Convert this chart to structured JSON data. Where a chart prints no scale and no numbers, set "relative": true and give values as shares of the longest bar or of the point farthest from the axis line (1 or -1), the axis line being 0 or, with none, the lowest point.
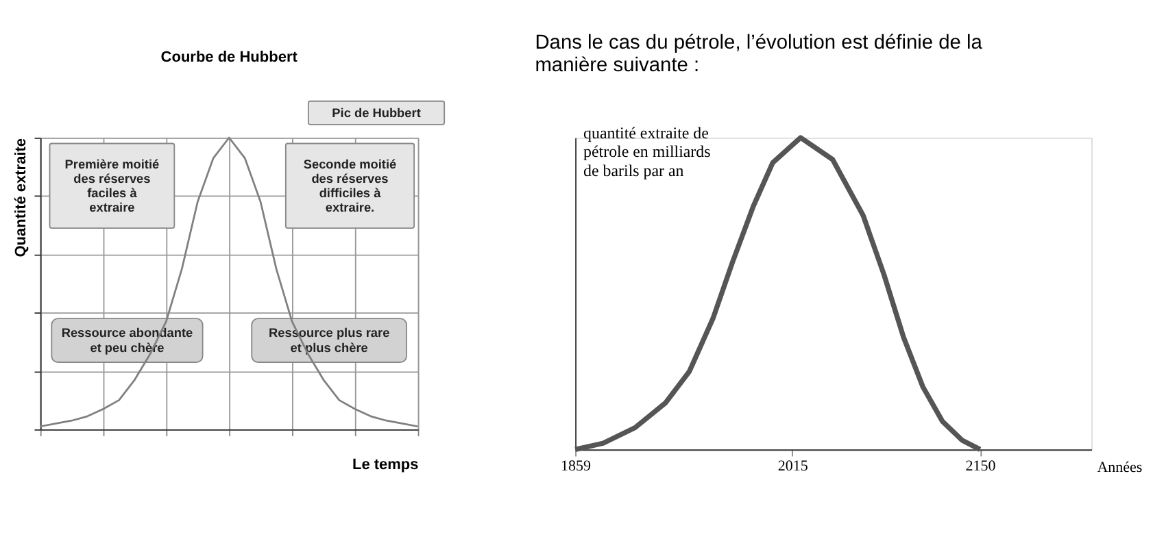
{
  "chart_data": [
    {
      "type": "line",
      "title": "Courbe de Hubbert",
      "xlabel": "Le temps",
      "ylabel": "Quantité extraite",
      "relative": true,
      "grid": true,
      "tick_labels": false,
      "legend": false,
      "marker": "none",
      "line_style": "solid",
      "categories": [
        null,
        null,
        null,
        null,
        null,
        null,
        null,
        null,
        null,
        null,
        null,
        null,
        null,
        null,
        null,
        null,
        null,
        null,
        null,
        null,
        null,
        null,
        null,
        null,
        null
      ],
      "series": [
        {
          "color": "#808080",
          "values": [
            0.01,
            0.02,
            0.03,
            0.045,
            0.07,
            0.1,
            0.17,
            0.26,
            0.37,
            0.55,
            0.78,
            0.93,
            1.0,
            0.93,
            0.78,
            0.55,
            0.37,
            0.26,
            0.17,
            0.1,
            0.07,
            0.045,
            0.03,
            0.02,
            0.01
          ]
        }
      ],
      "annotations": [
        "Pic de Hubbert",
        "Première moitié\ndes réserves\nfaciles à\nextraire",
        "Seconde moitié\ndes réserves\ndifficiles à\nextraire.",
        "Ressource abondante\net peu chère",
        "Ressource plus rare\net plus chère"
      ]
    },
    {
      "type": "line",
      "title": "Dans le cas du pétrole, l’évolution est définie de la\nmanière suivante :",
      "xlabel": "Années",
      "ylabel": "quantité extraite de\npétrole en milliards\nde barils par an",
      "relative": true,
      "grid": false,
      "tick_labels": "x",
      "legend": false,
      "marker": "none",
      "line_style": "solid",
      "xlim": [
        1859,
        2230
      ],
      "xticks": [
        1859,
        2015,
        2150
      ],
      "series": [
        {
          "color": "#555555",
          "x": [
            1859,
            1879,
            1902,
            1924,
            1941,
            1958,
            1972,
            1987,
            2001,
            2021,
            2044,
            2066,
            2081,
            2095,
            2109,
            2123,
            2137,
            2150
          ],
          "values": [
            0,
            0.02,
            0.07,
            0.15,
            0.25,
            0.42,
            0.6,
            0.78,
            0.92,
            1.0,
            0.93,
            0.75,
            0.56,
            0.36,
            0.2,
            0.09,
            0.03,
            0
          ]
        }
      ]
    }
  ]
}
